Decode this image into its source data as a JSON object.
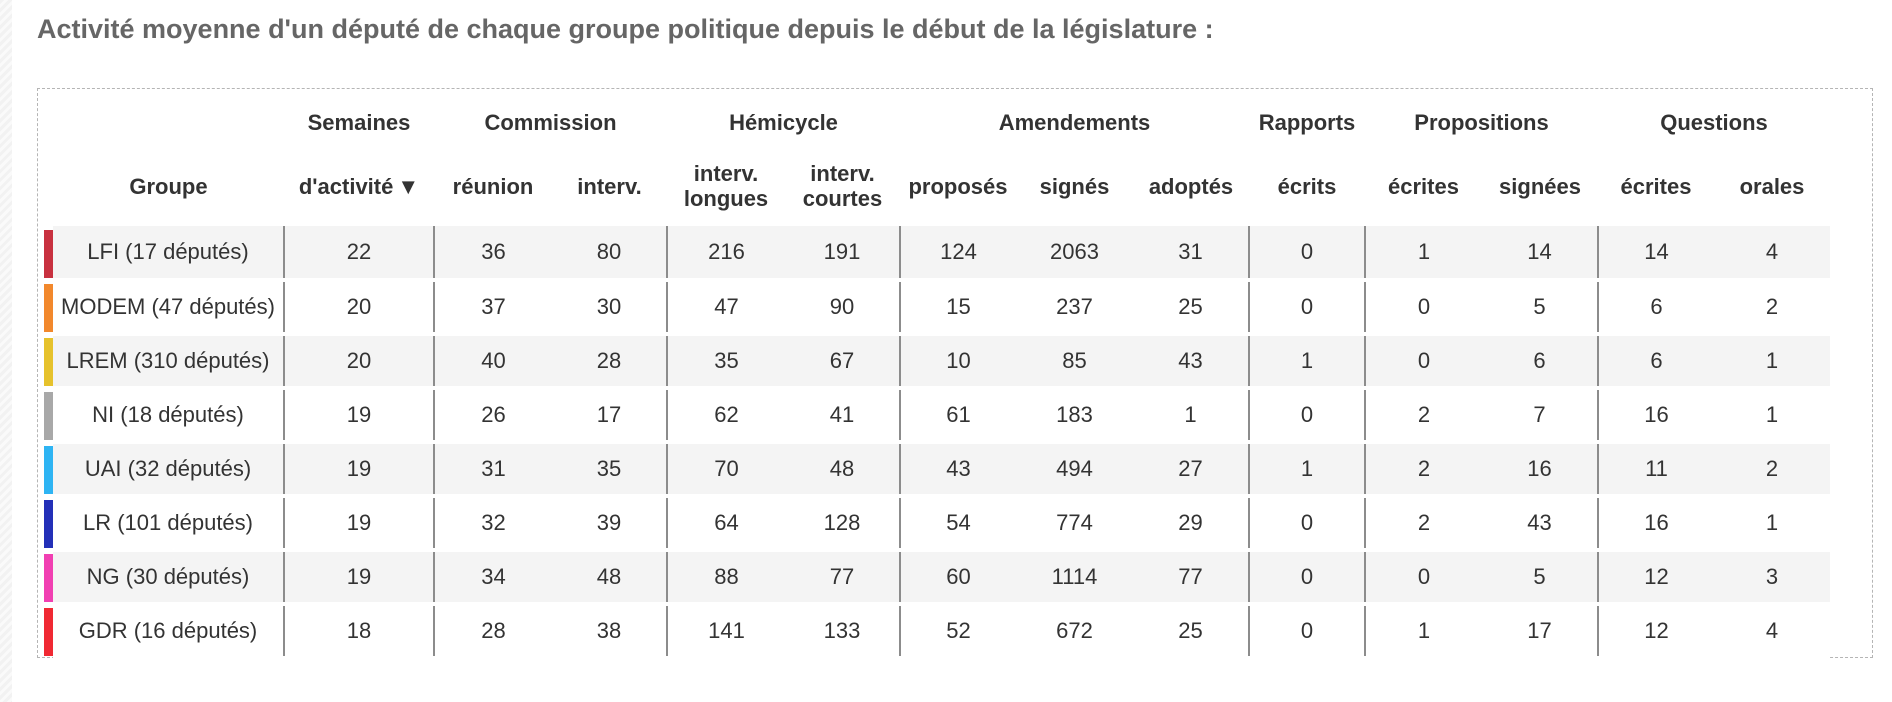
{
  "title": "Activité moyenne d'un député de chaque groupe politique depuis le début de la législature :",
  "header_top": {
    "semaines": "Semaines",
    "commission": "Commission",
    "hemicycle": "Hémicycle",
    "amendements": "Amendements",
    "rapports": "Rapports",
    "propositions": "Propositions",
    "questions": "Questions"
  },
  "header_sub": {
    "groupe": "Groupe",
    "activite": "d'activité",
    "sort_icon": "▼",
    "reunion": "réunion",
    "interv": "interv.",
    "interv_longues_1": "interv.",
    "interv_longues_2": "longues",
    "interv_courtes_1": "interv.",
    "interv_courtes_2": "courtes",
    "proposes": "proposés",
    "signes": "signés",
    "adoptes": "adoptés",
    "rapports_ecrits": "écrits",
    "prop_ecrites": "écrites",
    "prop_signees": "signées",
    "quest_ecrites": "écrites",
    "quest_orales": "orales"
  },
  "rows": [
    {
      "color": "#c8313f",
      "name": "LFI (17 députés)",
      "values": [
        "22",
        "36",
        "80",
        "216",
        "191",
        "124",
        "2063",
        "31",
        "0",
        "1",
        "14",
        "14",
        "4"
      ]
    },
    {
      "color": "#f2882c",
      "name": "MODEM (47 députés)",
      "values": [
        "20",
        "37",
        "30",
        "47",
        "90",
        "15",
        "237",
        "25",
        "0",
        "0",
        "5",
        "6",
        "2"
      ]
    },
    {
      "color": "#e6c22c",
      "name": "LREM (310 députés)",
      "values": [
        "20",
        "40",
        "28",
        "35",
        "67",
        "10",
        "85",
        "43",
        "1",
        "0",
        "6",
        "6",
        "1"
      ]
    },
    {
      "color": "#a8a8a8",
      "name": "NI (18 députés)",
      "values": [
        "19",
        "26",
        "17",
        "62",
        "41",
        "61",
        "183",
        "1",
        "0",
        "2",
        "7",
        "16",
        "1"
      ]
    },
    {
      "color": "#2eb4f3",
      "name": "UAI (32 députés)",
      "values": [
        "19",
        "31",
        "35",
        "70",
        "48",
        "43",
        "494",
        "27",
        "1",
        "2",
        "16",
        "11",
        "2"
      ]
    },
    {
      "color": "#2330b8",
      "name": "LR (101 députés)",
      "values": [
        "19",
        "32",
        "39",
        "64",
        "128",
        "54",
        "774",
        "29",
        "0",
        "2",
        "43",
        "16",
        "1"
      ]
    },
    {
      "color": "#f13fb2",
      "name": "NG (30 députés)",
      "values": [
        "19",
        "34",
        "48",
        "88",
        "77",
        "60",
        "1114",
        "77",
        "0",
        "0",
        "5",
        "12",
        "3"
      ]
    },
    {
      "color": "#f02933",
      "name": "GDR (16 députés)",
      "values": [
        "18",
        "28",
        "38",
        "141",
        "133",
        "52",
        "672",
        "25",
        "0",
        "1",
        "17",
        "12",
        "4"
      ]
    }
  ]
}
